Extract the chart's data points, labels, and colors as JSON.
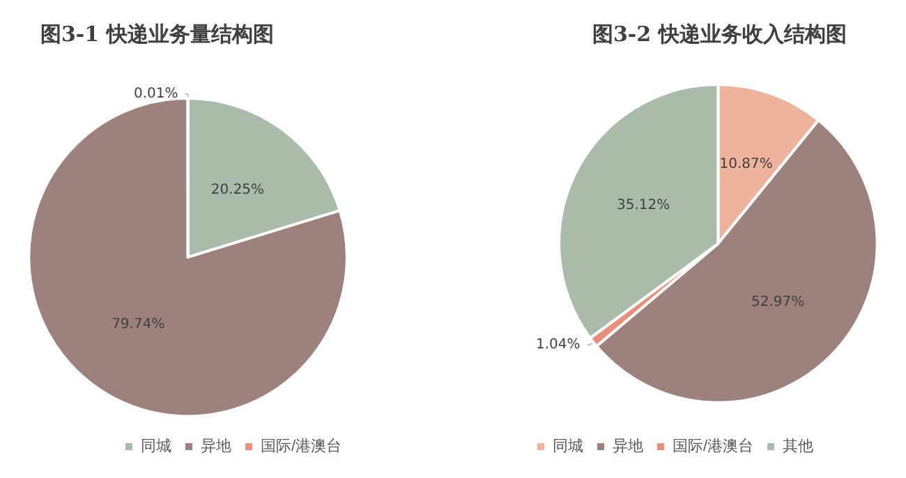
{
  "chart_data": [
    {
      "type": "pie",
      "title": "图3-1 快递业务量结构图",
      "categories": [
        "同城",
        "异地",
        "国际/港澳台"
      ],
      "values": [
        20.25,
        79.74,
        0.01
      ],
      "colors": [
        "#a9bcaa",
        "#9c817d",
        "#e8917a"
      ],
      "value_labels": [
        "20.25%",
        "79.74%",
        "0.01%"
      ],
      "legend": "bottom"
    },
    {
      "type": "pie",
      "title": "图3-2 快递业务收入结构图",
      "categories": [
        "同城",
        "异地",
        "国际/港澳台",
        "其他"
      ],
      "values": [
        10.87,
        52.97,
        1.04,
        35.12
      ],
      "colors": [
        "#eeb39c",
        "#9c817d",
        "#e8917a",
        "#a9bcaa"
      ],
      "value_labels": [
        "10.87%",
        "52.97%",
        "1.04%",
        "35.12%"
      ],
      "legend": "bottom"
    }
  ]
}
